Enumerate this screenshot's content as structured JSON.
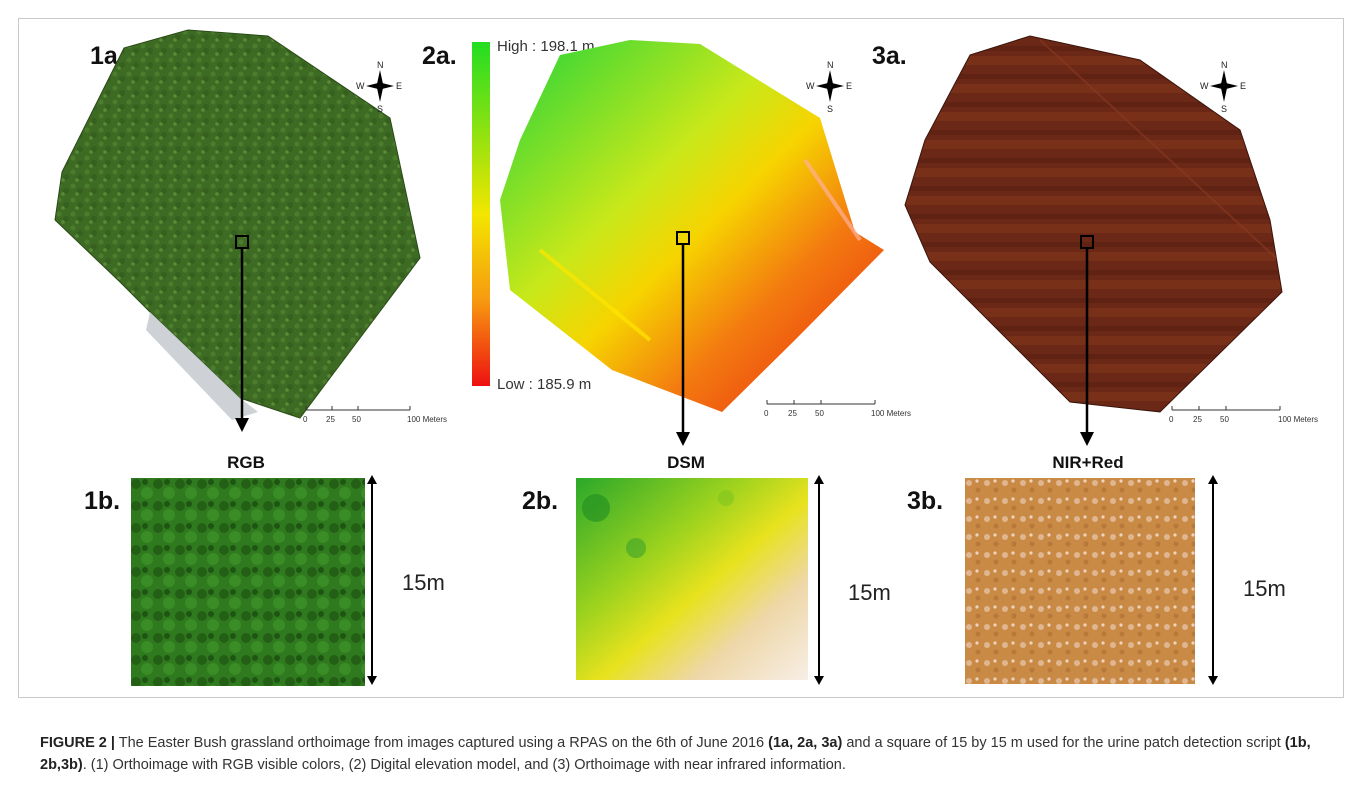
{
  "panels": {
    "p1a": {
      "label": "1a."
    },
    "p2a": {
      "label": "2a."
    },
    "p3a": {
      "label": "3a."
    },
    "p1b": {
      "label": "1b.",
      "title": "RGB",
      "dimension": "15m"
    },
    "p2b": {
      "label": "2b.",
      "title": "DSM",
      "dimension": "15m"
    },
    "p3b": {
      "label": "3b.",
      "title": "NIR+Red",
      "dimension": "15m"
    }
  },
  "legend": {
    "high": "High : 198.1 m",
    "low": "Low : 185.9 m"
  },
  "compass": {
    "n": "N",
    "s": "S",
    "e": "E",
    "w": "W"
  },
  "scale_bar": {
    "ticks": [
      "0",
      "25",
      "50",
      "100 Meters"
    ]
  },
  "caption": {
    "figure_label": "FIGURE 2 |",
    "part1": " The Easter Bush grassland orthoimage from images captured using a RPAS on the 6th of June 2016 ",
    "bold1": "(1a, 2a, 3a)",
    "part2": " and a square of 15 by 15 m used for the urine patch detection script ",
    "bold2": "(1b, 2b,3b)",
    "part3": ". (1) Orthoimage with RGB visible colors, (2) Digital elevation model, and (3) Orthoimage with near infrared information."
  },
  "colors": {
    "rgb_field": "#3f6a26",
    "dsm_high": "#22dd22",
    "dsm_mid": "#f2e600",
    "dsm_low": "#ee1111",
    "nir_field": "#6e2a18",
    "nir_patch": "#c98a46"
  }
}
